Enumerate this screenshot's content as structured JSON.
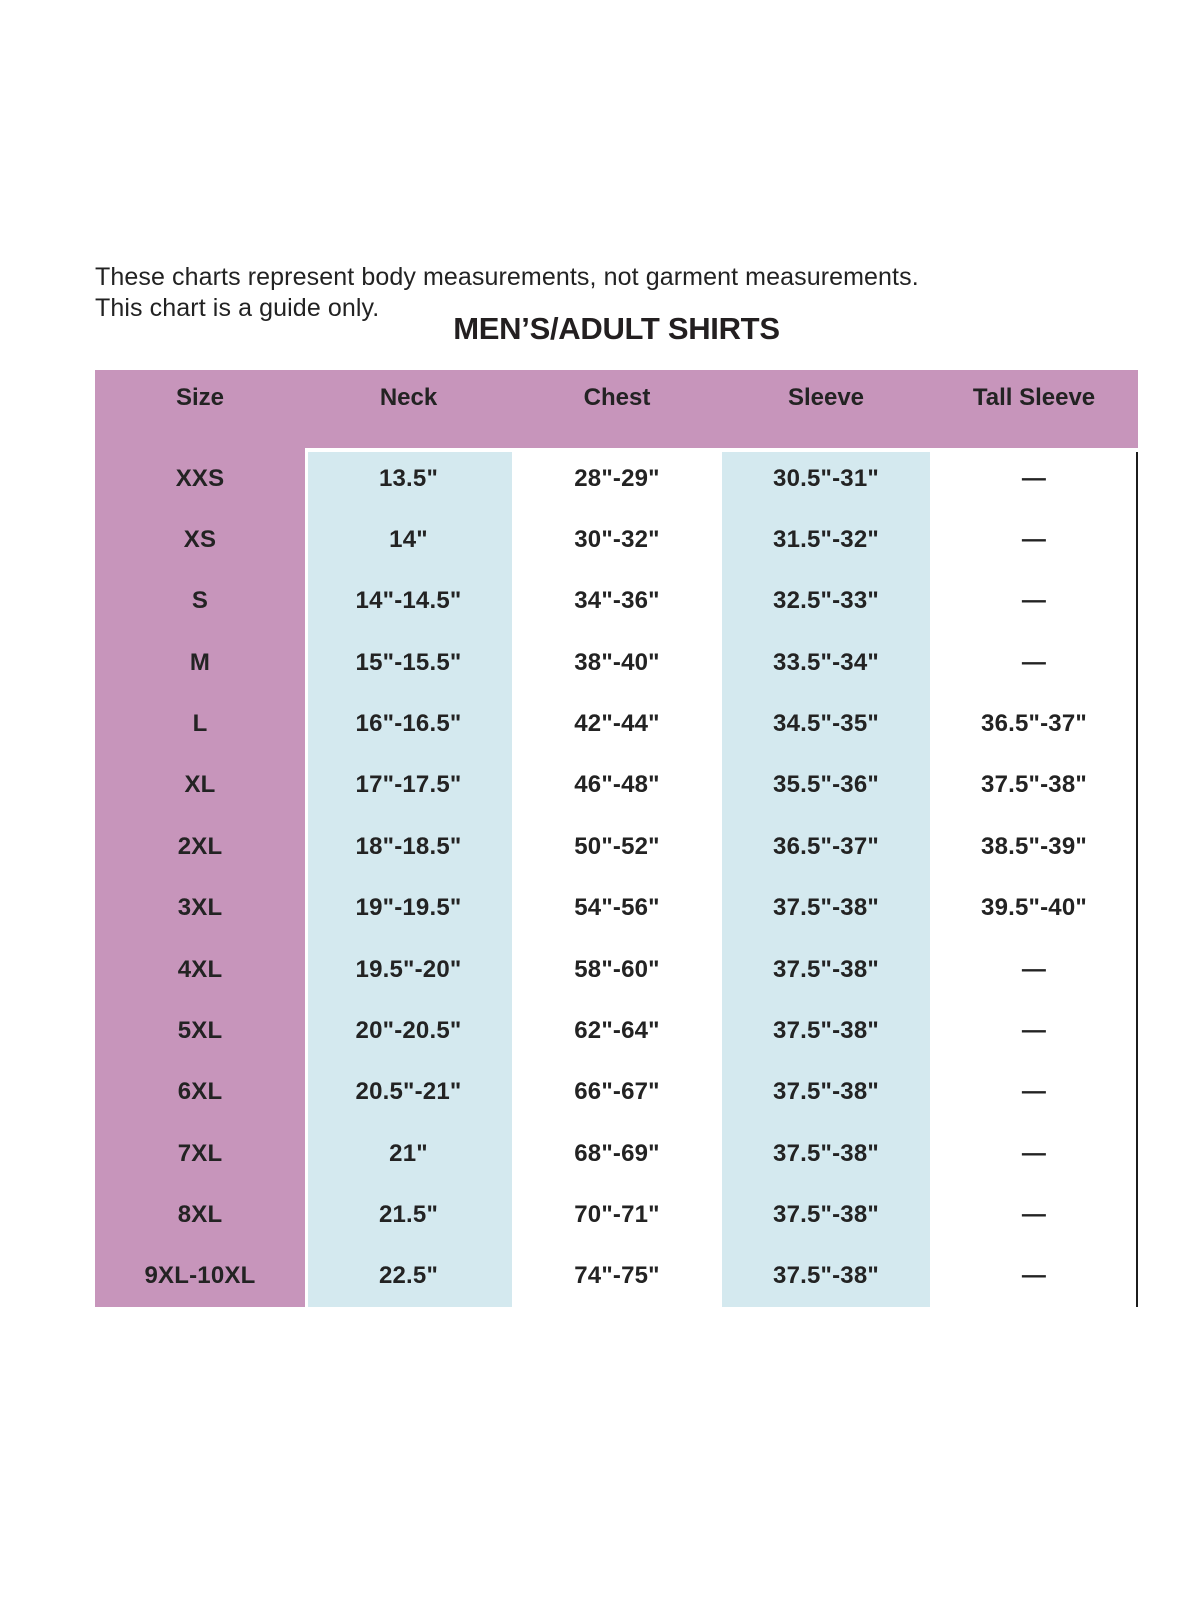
{
  "page": {
    "disclaimer_line1": "These charts represent body measurements, not garment measurements.",
    "disclaimer_line2": "This chart is a guide only.",
    "title": "MEN’S/ADULT SHIRTS"
  },
  "table": {
    "columns": [
      "Size",
      "Neck",
      "Chest",
      "Sleeve",
      "Tall Sleeve"
    ],
    "rows": [
      [
        "XXS",
        "13.5\"",
        "28\"-29\"",
        "30.5\"-31\"",
        "—"
      ],
      [
        "XS",
        "14\"",
        "30\"-32\"",
        "31.5\"-32\"",
        "—"
      ],
      [
        "S",
        "14\"-14.5\"",
        "34\"-36\"",
        "32.5\"-33\"",
        "—"
      ],
      [
        "M",
        "15\"-15.5\"",
        "38\"-40\"",
        "33.5\"-34\"",
        "—"
      ],
      [
        "L",
        "16\"-16.5\"",
        "42\"-44\"",
        "34.5\"-35\"",
        "36.5\"-37\""
      ],
      [
        "XL",
        "17\"-17.5\"",
        "46\"-48\"",
        "35.5\"-36\"",
        "37.5\"-38\""
      ],
      [
        "2XL",
        "18\"-18.5\"",
        "50\"-52\"",
        "36.5\"-37\"",
        "38.5\"-39\""
      ],
      [
        "3XL",
        "19\"-19.5\"",
        "54\"-56\"",
        "37.5\"-38\"",
        "39.5\"-40\""
      ],
      [
        "4XL",
        "19.5\"-20\"",
        "58\"-60\"",
        "37.5\"-38\"",
        "—"
      ],
      [
        "5XL",
        "20\"-20.5\"",
        "62\"-64\"",
        "37.5\"-38\"",
        "—"
      ],
      [
        "6XL",
        "20.5\"-21\"",
        "66\"-67\"",
        "37.5\"-38\"",
        "—"
      ],
      [
        "7XL",
        "21\"",
        "68\"-69\"",
        "37.5\"-38\"",
        "—"
      ],
      [
        "8XL",
        "21.5\"",
        "70\"-71\"",
        "37.5\"-38\"",
        "—"
      ],
      [
        "9XL-10XL",
        "22.5\"",
        "74\"-75\"",
        "37.5\"-38\"",
        "—"
      ]
    ],
    "empty_value": "—",
    "colors": {
      "header_and_size_column_bg": "#c795bb",
      "stripe_bg": "#d4e9ef",
      "text": "#232323",
      "title_text": "#231f20",
      "right_border": "#1c1c1c"
    }
  }
}
